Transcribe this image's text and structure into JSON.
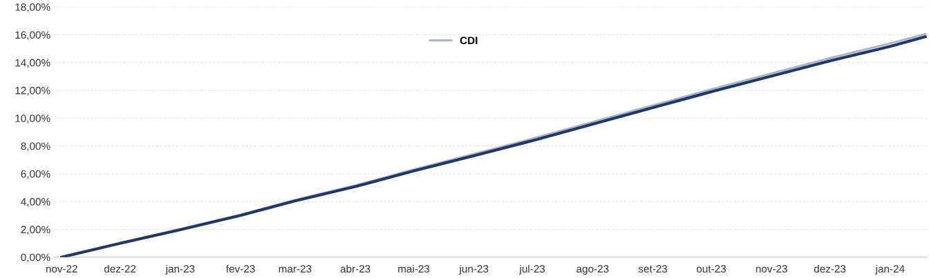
{
  "chart_data": {
    "type": "line",
    "series": [
      {
        "color": "#1f3864",
        "x": [
          "2022-11-01",
          "2022-12-01",
          "2023-01-01",
          "2023-02-01",
          "2023-03-01",
          "2023-04-01",
          "2023-05-01",
          "2023-06-01",
          "2023-07-01",
          "2023-08-01",
          "2023-09-01",
          "2023-10-01",
          "2023-11-01",
          "2023-12-01",
          "2024-01-01",
          "2024-01-19"
        ],
        "values": [
          0,
          0.99,
          1.97,
          3.0,
          4.05,
          5.08,
          6.2,
          7.3,
          8.38,
          9.57,
          10.76,
          11.9,
          13.03,
          14.12,
          15.16,
          15.85
        ]
      },
      {
        "name": "CDI",
        "color": "#a9b4c8",
        "x": [
          "2022-11-01",
          "2022-12-01",
          "2023-01-01",
          "2023-02-01",
          "2023-03-01",
          "2023-04-01",
          "2023-05-01",
          "2023-06-01",
          "2023-07-01",
          "2023-08-01",
          "2023-09-01",
          "2023-10-01",
          "2023-11-01",
          "2023-12-01",
          "2024-01-01",
          "2024-01-19"
        ],
        "values": [
          0,
          1.02,
          2.02,
          3.06,
          4.12,
          5.16,
          6.3,
          7.42,
          8.52,
          9.72,
          10.92,
          12.07,
          13.22,
          14.32,
          15.38,
          16.05
        ]
      }
    ],
    "xlim": [
      "2022-10-28",
      "2024-01-20"
    ],
    "xticks": [
      {
        "value": "2022-11-01",
        "label": "nov-22"
      },
      {
        "value": "2022-12-01",
        "label": "dez-22"
      },
      {
        "value": "2023-01-01",
        "label": "jan-23"
      },
      {
        "value": "2023-02-01",
        "label": "fev-23"
      },
      {
        "value": "2023-03-01",
        "label": "mar-23"
      },
      {
        "value": "2023-04-01",
        "label": "abr-23"
      },
      {
        "value": "2023-05-01",
        "label": "mai-23"
      },
      {
        "value": "2023-06-01",
        "label": "jun-23"
      },
      {
        "value": "2023-07-01",
        "label": "jul-23"
      },
      {
        "value": "2023-08-01",
        "label": "ago-23"
      },
      {
        "value": "2023-09-01",
        "label": "set-23"
      },
      {
        "value": "2023-10-01",
        "label": "out-23"
      },
      {
        "value": "2023-11-01",
        "label": "nov-23"
      },
      {
        "value": "2023-12-01",
        "label": "dez-23"
      },
      {
        "value": "2024-01-01",
        "label": "jan-24"
      }
    ],
    "ylim": [
      0,
      18
    ],
    "yticks": [
      {
        "value": 0,
        "label": "0,00%"
      },
      {
        "value": 2,
        "label": "2,00%"
      },
      {
        "value": 4,
        "label": "4,00%"
      },
      {
        "value": 6,
        "label": "6,00%"
      },
      {
        "value": 8,
        "label": "8,00%"
      },
      {
        "value": 10,
        "label": "10,00%"
      },
      {
        "value": 12,
        "label": "12,00%"
      },
      {
        "value": 14,
        "label": "14,00%"
      },
      {
        "value": 16,
        "label": "16,00%"
      },
      {
        "value": 18,
        "label": "18,00%"
      }
    ],
    "grid": "y",
    "legend": "top left",
    "line_style": "solid",
    "marker": "none"
  }
}
